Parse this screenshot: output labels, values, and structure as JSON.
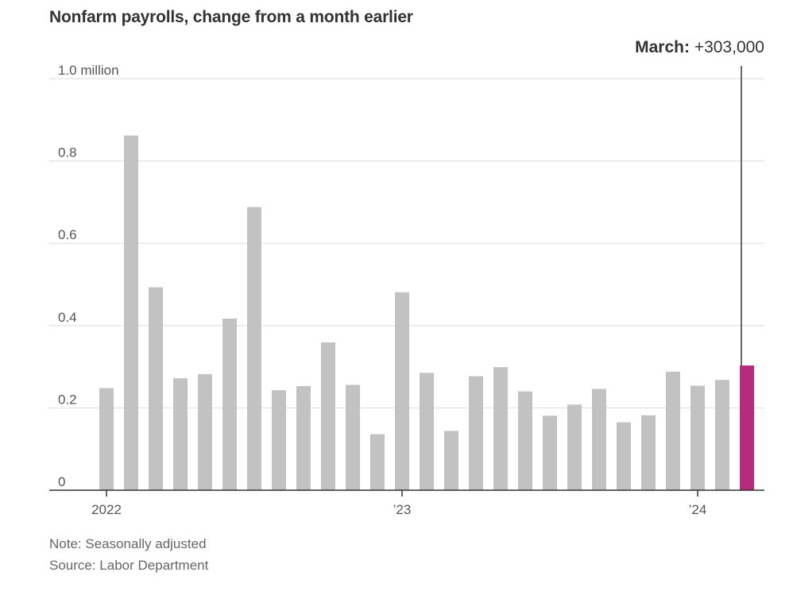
{
  "title": "Nonfarm payrolls, change from a month earlier",
  "annotation": {
    "label": "March:",
    "value": "+303,000"
  },
  "note": "Note: Seasonally adjusted",
  "source": "Source: Labor Department",
  "colors": {
    "bar": "#c2c2c2",
    "highlight": "#b72b7c",
    "grid": "#dddddd",
    "axis": "#333333"
  },
  "chart_data": {
    "type": "bar",
    "title": "Nonfarm payrolls, change from a month earlier",
    "ylabel": "",
    "xlabel": "",
    "ylim": [
      0,
      1.0
    ],
    "yticks": [
      {
        "value": 0,
        "label": "0"
      },
      {
        "value": 0.2,
        "label": "0.2"
      },
      {
        "value": 0.4,
        "label": "0.4"
      },
      {
        "value": 0.6,
        "label": "0.6"
      },
      {
        "value": 0.8,
        "label": "0.8"
      },
      {
        "value": 1.0,
        "label": "1.0 million"
      }
    ],
    "xticks": [
      {
        "index": 0,
        "label": "2022"
      },
      {
        "index": 12,
        "label": "’23"
      },
      {
        "index": 24,
        "label": "’24"
      }
    ],
    "categories": [
      "2022-01",
      "2022-02",
      "2022-03",
      "2022-04",
      "2022-05",
      "2022-06",
      "2022-07",
      "2022-08",
      "2022-09",
      "2022-10",
      "2022-11",
      "2022-12",
      "2023-01",
      "2023-02",
      "2023-03",
      "2023-04",
      "2023-05",
      "2023-06",
      "2023-07",
      "2023-08",
      "2023-09",
      "2023-10",
      "2023-11",
      "2023-12",
      "2024-01",
      "2024-02",
      "2024-03"
    ],
    "values": [
      0.248,
      0.862,
      0.493,
      0.272,
      0.282,
      0.417,
      0.688,
      0.243,
      0.253,
      0.359,
      0.256,
      0.136,
      0.481,
      0.285,
      0.144,
      0.277,
      0.299,
      0.24,
      0.181,
      0.208,
      0.246,
      0.165,
      0.182,
      0.288,
      0.254,
      0.268,
      0.303
    ],
    "highlight_index": 26,
    "grid": true
  }
}
